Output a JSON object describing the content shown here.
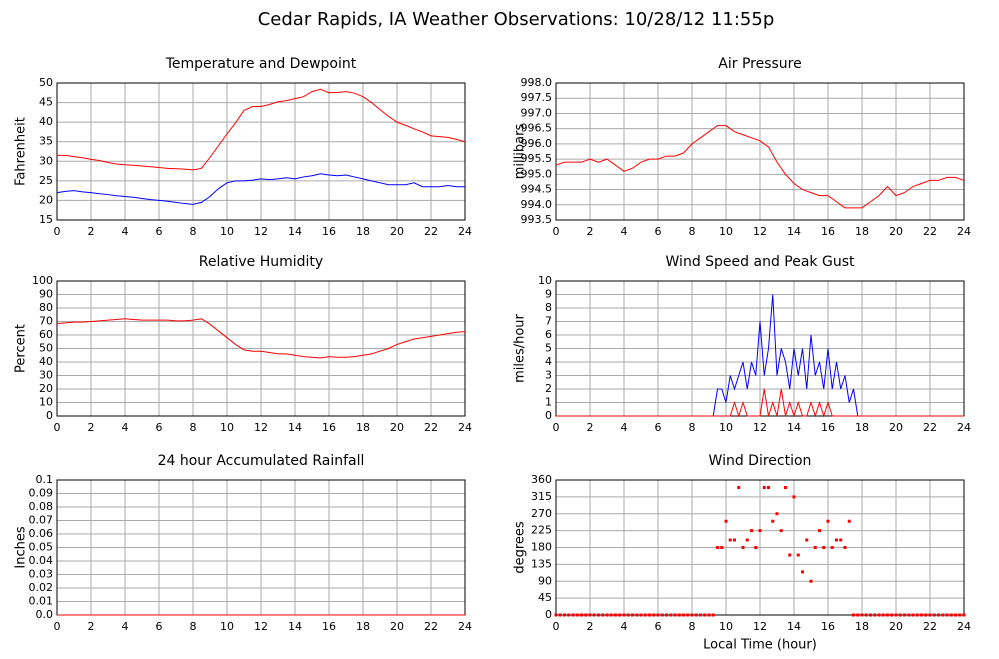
{
  "title": "Cedar Rapids, IA Weather Observations: 10/28/12 11:55p",
  "chart_data": [
    {
      "type": "line",
      "title": "Temperature and Dewpoint",
      "ylabel": "Fahrenheit",
      "x": [
        0,
        0.5,
        1,
        1.5,
        2,
        2.5,
        3,
        3.5,
        4,
        4.5,
        5,
        5.5,
        6,
        6.5,
        7,
        7.5,
        8,
        8.5,
        9,
        9.5,
        10,
        10.5,
        11,
        11.5,
        12,
        12.5,
        13,
        13.5,
        14,
        14.5,
        15,
        15.5,
        16,
        16.5,
        17,
        17.5,
        18,
        18.5,
        19,
        19.5,
        20,
        20.5,
        21,
        21.5,
        22,
        22.5,
        23,
        23.5,
        24
      ],
      "series": [
        {
          "color": "#ff0000",
          "values": [
            31.5,
            31.5,
            31.2,
            30.9,
            30.5,
            30.2,
            29.7,
            29.3,
            29.1,
            29,
            28.8,
            28.6,
            28.4,
            28.2,
            28.1,
            28,
            27.8,
            28.2,
            31,
            34,
            37,
            39.8,
            43,
            44,
            44,
            44.5,
            45.2,
            45.5,
            46,
            46.5,
            47.8,
            48.4,
            47.5,
            47.6,
            47.8,
            47.4,
            46.5,
            45,
            43.2,
            41.5,
            40,
            39.2,
            38.3,
            37.5,
            36.5,
            36.3,
            36.1,
            35.6,
            35
          ]
        },
        {
          "color": "#0000ff",
          "values": [
            22,
            22.3,
            22.5,
            22.2,
            22,
            21.7,
            21.5,
            21.2,
            21,
            20.8,
            20.5,
            20.2,
            20,
            19.8,
            19.5,
            19.2,
            19,
            19.5,
            21,
            23,
            24.5,
            25,
            25,
            25.2,
            25.5,
            25.3,
            25.5,
            25.8,
            25.5,
            26,
            26.3,
            26.8,
            26.5,
            26.3,
            26.5,
            26,
            25.5,
            25,
            24.5,
            24,
            24,
            24,
            24.5,
            23.5,
            23.5,
            23.5,
            23.8,
            23.5,
            23.5
          ]
        }
      ],
      "xlim": [
        0,
        24
      ],
      "xticks": [
        0,
        2,
        4,
        6,
        8,
        10,
        12,
        14,
        16,
        18,
        20,
        22,
        24
      ],
      "ylim": [
        15,
        50
      ],
      "yticks": [
        15,
        20,
        25,
        30,
        35,
        40,
        45,
        50
      ],
      "grid": true
    },
    {
      "type": "line",
      "title": "Air Pressure",
      "ylabel": "millibars",
      "x": [
        0,
        0.5,
        1,
        1.5,
        2,
        2.5,
        3,
        3.5,
        4,
        4.5,
        5,
        5.5,
        6,
        6.5,
        7,
        7.5,
        8,
        8.5,
        9,
        9.5,
        10,
        10.5,
        11,
        11.5,
        12,
        12.5,
        13,
        13.5,
        14,
        14.5,
        15,
        15.5,
        16,
        16.5,
        17,
        17.5,
        18,
        18.5,
        19,
        19.5,
        20,
        20.5,
        21,
        21.5,
        22,
        22.5,
        23,
        23.5,
        24
      ],
      "series": [
        {
          "color": "#ff0000",
          "values": [
            995.3,
            995.4,
            995.4,
            995.4,
            995.5,
            995.4,
            995.5,
            995.3,
            995.1,
            995.2,
            995.4,
            995.5,
            995.5,
            995.6,
            995.6,
            995.7,
            996.0,
            996.2,
            996.4,
            996.6,
            996.6,
            996.4,
            996.3,
            996.2,
            996.1,
            995.9,
            995.4,
            995.0,
            994.7,
            994.5,
            994.4,
            994.3,
            994.3,
            994.1,
            993.9,
            993.9,
            993.9,
            994.1,
            994.3,
            994.6,
            994.3,
            994.4,
            994.6,
            994.7,
            994.8,
            994.8,
            994.9,
            994.9,
            994.8
          ]
        }
      ],
      "xlim": [
        0,
        24
      ],
      "xticks": [
        0,
        2,
        4,
        6,
        8,
        10,
        12,
        14,
        16,
        18,
        20,
        22,
        24
      ],
      "ylim": [
        993.5,
        998
      ],
      "yticks": [
        993.5,
        {
          "value": 994,
          "label": "994.0"
        },
        994.5,
        {
          "value": 995,
          "label": "995.0"
        },
        995.5,
        {
          "value": 996,
          "label": "996.0"
        },
        996.5,
        {
          "value": 997,
          "label": "997.0"
        },
        997.5,
        {
          "value": 998,
          "label": "998.0"
        }
      ],
      "grid": true
    },
    {
      "type": "line",
      "title": "Relative Humidity",
      "ylabel": "Percent",
      "x": [
        0,
        0.5,
        1,
        1.5,
        2,
        2.5,
        3,
        3.5,
        4,
        4.5,
        5,
        5.5,
        6,
        6.5,
        7,
        7.5,
        8,
        8.5,
        9,
        9.5,
        10,
        10.5,
        11,
        11.5,
        12,
        12.5,
        13,
        13.5,
        14,
        14.5,
        15,
        15.5,
        16,
        16.5,
        17,
        17.5,
        18,
        18.5,
        19,
        19.5,
        20,
        20.5,
        21,
        21.5,
        22,
        22.5,
        23,
        23.5,
        24
      ],
      "series": [
        {
          "color": "#ff0000",
          "values": [
            68.5,
            69,
            69.5,
            69.5,
            70,
            70.5,
            71,
            71.5,
            72,
            71.5,
            71,
            71,
            71,
            71,
            70.5,
            70.5,
            71,
            72,
            68,
            63,
            58,
            53,
            49,
            48,
            48,
            47,
            46,
            46,
            45,
            44,
            43.5,
            43,
            44,
            43.5,
            43.5,
            44,
            45,
            46,
            48,
            50,
            53,
            55,
            57,
            58,
            59,
            60,
            61,
            62,
            62.5
          ]
        }
      ],
      "xlim": [
        0,
        24
      ],
      "xticks": [
        0,
        2,
        4,
        6,
        8,
        10,
        12,
        14,
        16,
        18,
        20,
        22,
        24
      ],
      "ylim": [
        0,
        100
      ],
      "yticks": [
        0,
        10,
        20,
        30,
        40,
        50,
        60,
        70,
        80,
        90,
        100
      ],
      "grid": true
    },
    {
      "type": "line",
      "title": "Wind Speed and Peak Gust",
      "ylabel": "miles/hour",
      "x": [
        0,
        0.25,
        0.5,
        0.75,
        1,
        1.25,
        1.5,
        1.75,
        2,
        2.25,
        2.5,
        2.75,
        3,
        3.25,
        3.5,
        3.75,
        4,
        4.25,
        4.5,
        4.75,
        5,
        5.25,
        5.5,
        5.75,
        6,
        6.25,
        6.5,
        6.75,
        7,
        7.25,
        7.5,
        7.75,
        8,
        8.25,
        8.5,
        8.75,
        9,
        9.25,
        9.5,
        9.75,
        10,
        10.25,
        10.5,
        10.75,
        11,
        11.25,
        11.5,
        11.75,
        12,
        12.25,
        12.5,
        12.75,
        13,
        13.25,
        13.5,
        13.75,
        14,
        14.25,
        14.5,
        14.75,
        15,
        15.25,
        15.5,
        15.75,
        16,
        16.25,
        16.5,
        16.75,
        17,
        17.25,
        17.5,
        17.75,
        18,
        18.25,
        18.5,
        18.75,
        19,
        19.25,
        19.5,
        19.75,
        20,
        20.25,
        20.5,
        20.75,
        21,
        21.25,
        21.5,
        21.75,
        22,
        22.25,
        22.5,
        22.75,
        23,
        23.25,
        23.5,
        23.75,
        24
      ],
      "series": [
        {
          "color": "#0000ff",
          "values": [
            0,
            0,
            0,
            0,
            0,
            0,
            0,
            0,
            0,
            0,
            0,
            0,
            0,
            0,
            0,
            0,
            0,
            0,
            0,
            0,
            0,
            0,
            0,
            0,
            0,
            0,
            0,
            0,
            0,
            0,
            0,
            0,
            0,
            0,
            0,
            0,
            0,
            0,
            2,
            2,
            1,
            3,
            2,
            3,
            4,
            2,
            4,
            3,
            7,
            3,
            5,
            9,
            3,
            5,
            4,
            2,
            5,
            3,
            5,
            2,
            6,
            3,
            4,
            2,
            5,
            2,
            4,
            2,
            3,
            1,
            2,
            0,
            0,
            0,
            0,
            0,
            0,
            0,
            0,
            0,
            0,
            0,
            0,
            0,
            0,
            0,
            0,
            0,
            0,
            0,
            0,
            0,
            0,
            0,
            0,
            0,
            0
          ]
        },
        {
          "color": "#ff0000",
          "values": [
            0,
            0,
            0,
            0,
            0,
            0,
            0,
            0,
            0,
            0,
            0,
            0,
            0,
            0,
            0,
            0,
            0,
            0,
            0,
            0,
            0,
            0,
            0,
            0,
            0,
            0,
            0,
            0,
            0,
            0,
            0,
            0,
            0,
            0,
            0,
            0,
            0,
            0,
            0,
            0,
            0,
            0,
            1,
            0,
            1,
            0,
            0,
            0,
            0,
            2,
            0,
            1,
            0,
            2,
            0,
            1,
            0,
            1,
            0,
            0,
            1,
            0,
            1,
            0,
            1,
            0,
            0,
            0,
            0,
            0,
            0,
            0,
            0,
            0,
            0,
            0,
            0,
            0,
            0,
            0,
            0,
            0,
            0,
            0,
            0,
            0,
            0,
            0,
            0,
            0,
            0,
            0,
            0,
            0,
            0,
            0,
            0
          ]
        }
      ],
      "xlim": [
        0,
        24
      ],
      "xticks": [
        0,
        2,
        4,
        6,
        8,
        10,
        12,
        14,
        16,
        18,
        20,
        22,
        24
      ],
      "ylim": [
        0,
        10
      ],
      "yticks": [
        0,
        1,
        2,
        3,
        4,
        5,
        6,
        7,
        8,
        9,
        10
      ],
      "grid": true
    },
    {
      "type": "line",
      "title": "24 hour Accumulated Rainfall",
      "ylabel": "Inches",
      "x": [
        0,
        24
      ],
      "series": [
        {
          "color": "#ff0000",
          "values": [
            0,
            0
          ]
        }
      ],
      "xlim": [
        0,
        24
      ],
      "xticks": [
        0,
        2,
        4,
        6,
        8,
        10,
        12,
        14,
        16,
        18,
        20,
        22,
        24
      ],
      "ylim": [
        0,
        0.1
      ],
      "yticks": [
        {
          "value": 0,
          "label": "0.0"
        },
        0.01,
        0.02,
        0.03,
        0.04,
        0.05,
        0.06,
        0.07,
        0.08,
        0.09,
        0.1
      ],
      "grid": true
    },
    {
      "type": "scatter",
      "title": "Wind Direction",
      "ylabel": "degrees",
      "xlabel": "Local Time (hour)",
      "color": "#ff0000",
      "x": [
        0,
        0.25,
        0.5,
        0.75,
        1,
        1.25,
        1.5,
        1.75,
        2,
        2.25,
        2.5,
        2.75,
        3,
        3.25,
        3.5,
        3.75,
        4,
        4.25,
        4.5,
        4.75,
        5,
        5.25,
        5.5,
        5.75,
        6,
        6.25,
        6.5,
        6.75,
        7,
        7.25,
        7.5,
        7.75,
        8,
        8.25,
        8.5,
        8.75,
        9,
        9.25,
        9.5,
        9.75,
        10,
        10.25,
        10.5,
        10.75,
        11,
        11.25,
        11.5,
        11.75,
        12,
        12.25,
        12.5,
        12.75,
        13,
        13.25,
        13.5,
        13.75,
        14,
        14.25,
        14.5,
        14.75,
        15,
        15.25,
        15.5,
        15.75,
        16,
        16.25,
        16.5,
        16.75,
        17,
        17.25,
        17.5,
        17.75,
        18,
        18.25,
        18.5,
        18.75,
        19,
        19.25,
        19.5,
        19.75,
        20,
        20.25,
        20.5,
        20.75,
        21,
        21.25,
        21.5,
        21.75,
        22,
        22.25,
        22.5,
        22.75,
        23,
        23.25,
        23.5,
        23.75,
        24
      ],
      "values": [
        0,
        0,
        0,
        0,
        0,
        0,
        0,
        0,
        0,
        0,
        0,
        0,
        0,
        0,
        0,
        0,
        0,
        0,
        0,
        0,
        0,
        0,
        0,
        0,
        0,
        0,
        0,
        0,
        0,
        0,
        0,
        0,
        0,
        0,
        0,
        0,
        0,
        0,
        180,
        180,
        250,
        200,
        200,
        340,
        180,
        200,
        225,
        180,
        225,
        340,
        340,
        250,
        270,
        225,
        340,
        160,
        315,
        160,
        115,
        200,
        90,
        180,
        225,
        180,
        250,
        180,
        200,
        200,
        180,
        250,
        0,
        0,
        0,
        0,
        0,
        0,
        0,
        0,
        0,
        0,
        0,
        0,
        0,
        0,
        0,
        0,
        0,
        0,
        0,
        0,
        0,
        0,
        0,
        0,
        0,
        0,
        0
      ],
      "xlim": [
        0,
        24
      ],
      "xticks": [
        0,
        2,
        4,
        6,
        8,
        10,
        12,
        14,
        16,
        18,
        20,
        22,
        24
      ],
      "ylim": [
        0,
        360
      ],
      "yticks": [
        0,
        45,
        90,
        135,
        180,
        225,
        270,
        315,
        360
      ],
      "grid": true
    }
  ]
}
